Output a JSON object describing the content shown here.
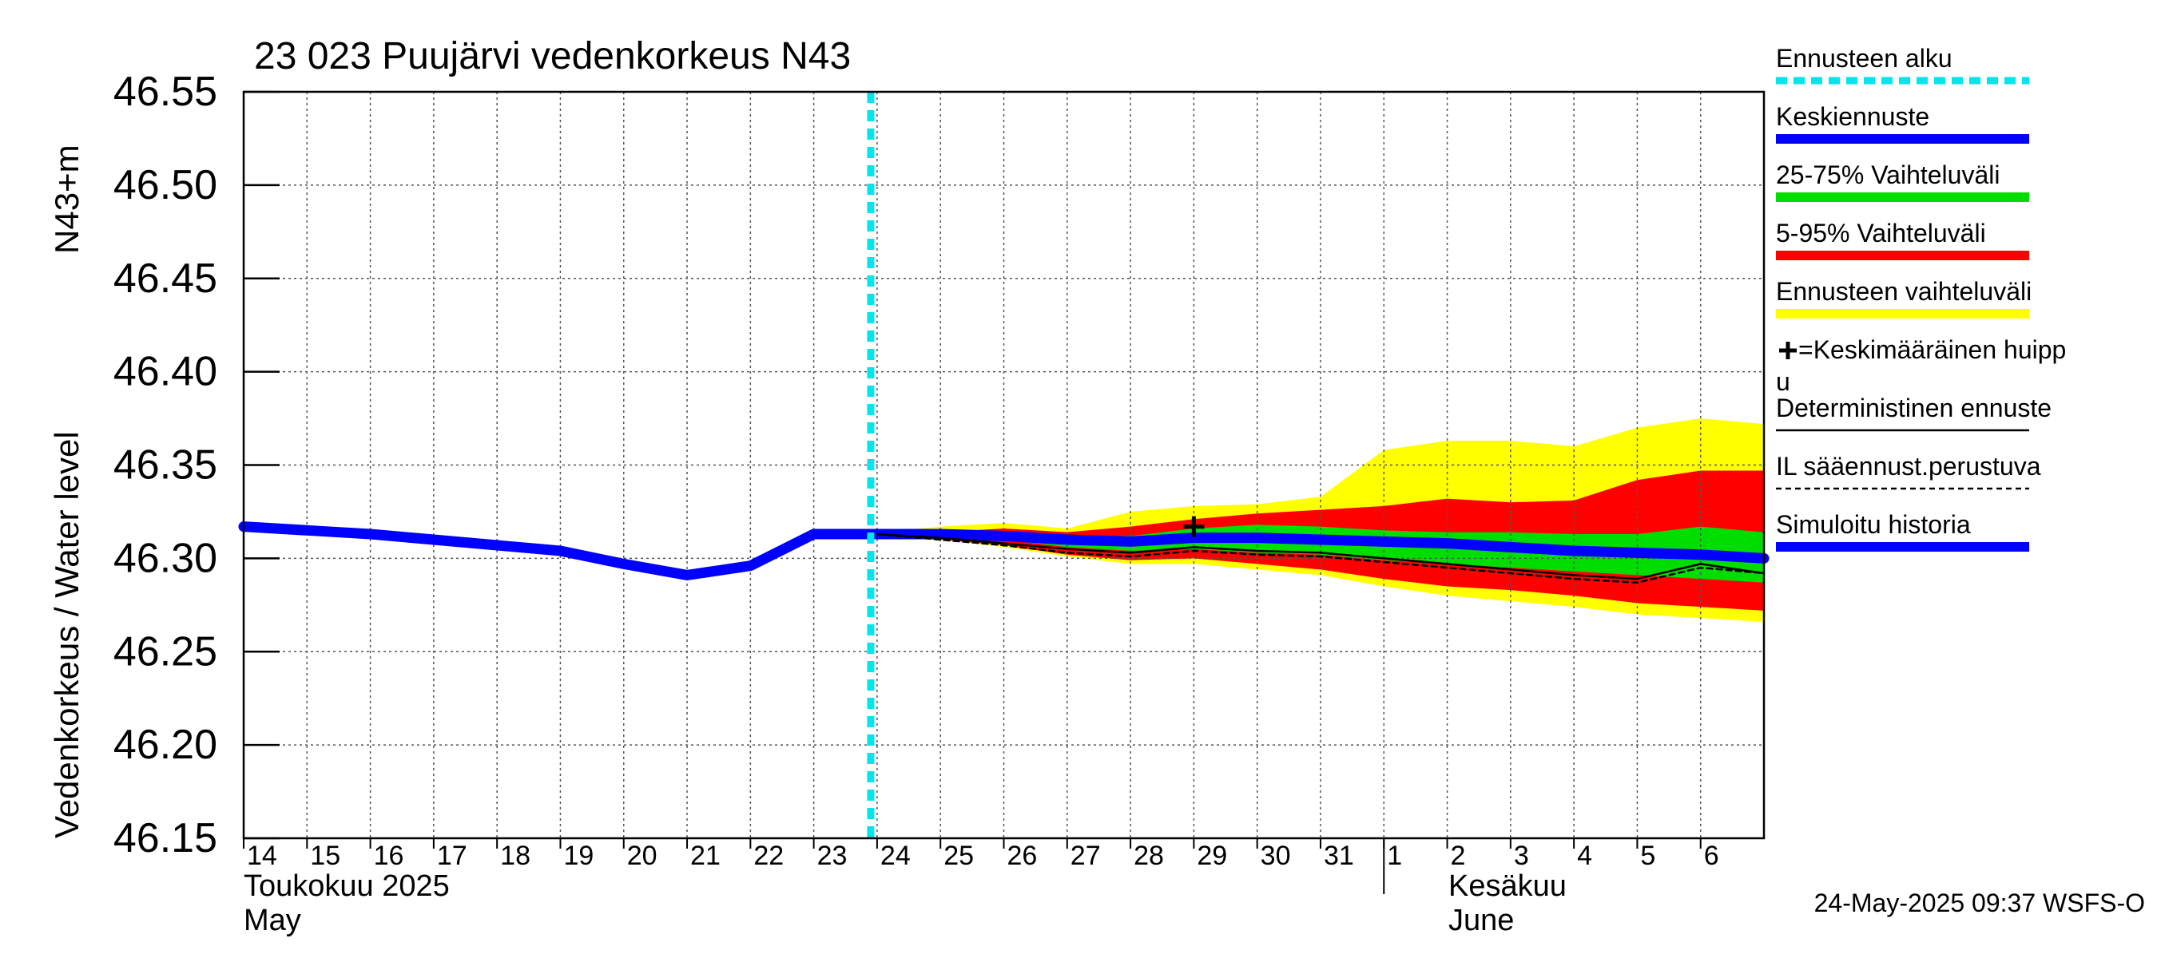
{
  "chart_data": {
    "type": "area",
    "title": "23 023 Puujärvi vedenkorkeus N43",
    "ylabel_left": "Vedenkorkeus / Water level",
    "ylabel_right": "N43+m",
    "ylim": [
      46.15,
      46.55
    ],
    "yticks": [
      "46.15",
      "46.20",
      "46.25",
      "46.30",
      "46.35",
      "46.40",
      "46.45",
      "46.50",
      "46.55"
    ],
    "xlim": [
      14,
      38
    ],
    "day_ticks": [
      {
        "x": 14,
        "label": "14"
      },
      {
        "x": 15,
        "label": "15"
      },
      {
        "x": 16,
        "label": "16"
      },
      {
        "x": 17,
        "label": "17"
      },
      {
        "x": 18,
        "label": "18"
      },
      {
        "x": 19,
        "label": "19"
      },
      {
        "x": 20,
        "label": "20"
      },
      {
        "x": 21,
        "label": "21"
      },
      {
        "x": 22,
        "label": "22"
      },
      {
        "x": 23,
        "label": "23"
      },
      {
        "x": 24,
        "label": "24"
      },
      {
        "x": 25,
        "label": "25"
      },
      {
        "x": 26,
        "label": "26"
      },
      {
        "x": 27,
        "label": "27"
      },
      {
        "x": 28,
        "label": "28"
      },
      {
        "x": 29,
        "label": "29"
      },
      {
        "x": 30,
        "label": "30"
      },
      {
        "x": 31,
        "label": "31"
      },
      {
        "x": 32,
        "label": "1"
      },
      {
        "x": 33,
        "label": "2"
      },
      {
        "x": 34,
        "label": "3"
      },
      {
        "x": 35,
        "label": "4"
      },
      {
        "x": 36,
        "label": "5"
      },
      {
        "x": 37,
        "label": "6"
      }
    ],
    "month_labels": {
      "may_fi": "Toukokuu  2025",
      "may_en": "May",
      "june_fi": "Kesäkuu",
      "june_en": "June"
    },
    "forecast_start_x": 24,
    "peak_marker": {
      "x": 29,
      "y": 46.317
    },
    "series": [
      {
        "name": "Simuloitu historia",
        "color": "#0000ff",
        "x": [
          14,
          15,
          16,
          17,
          18,
          19,
          20,
          21,
          22,
          23,
          24
        ],
        "y": [
          46.317,
          46.315,
          46.313,
          46.31,
          46.307,
          46.304,
          46.297,
          46.291,
          46.296,
          46.313,
          46.313
        ]
      },
      {
        "name": "Keskiennuste",
        "color": "#0000ff",
        "x": [
          24,
          25,
          26,
          27,
          28,
          29,
          30,
          31,
          32,
          33,
          34,
          35,
          36,
          37,
          38
        ],
        "y": [
          46.313,
          46.313,
          46.312,
          46.31,
          46.309,
          46.311,
          46.311,
          46.31,
          46.309,
          46.308,
          46.306,
          46.304,
          46.303,
          46.302,
          46.3
        ]
      },
      {
        "name": "Deterministinen ennuste",
        "color": "#000000",
        "x": [
          24,
          25,
          26,
          27,
          28,
          29,
          30,
          31,
          32,
          33,
          34,
          35,
          36,
          37,
          38
        ],
        "y": [
          46.313,
          46.311,
          46.308,
          46.305,
          46.303,
          46.306,
          46.304,
          46.303,
          46.3,
          46.297,
          46.294,
          46.291,
          46.289,
          46.297,
          46.292
        ]
      },
      {
        "name": "IL sääennust.perustuva",
        "color": "#000000",
        "x": [
          24,
          25,
          26,
          27,
          28,
          29,
          30,
          31,
          32,
          33,
          34,
          35,
          36,
          37,
          38
        ],
        "y": [
          46.313,
          46.31,
          46.307,
          46.303,
          46.301,
          46.304,
          46.302,
          46.301,
          46.298,
          46.295,
          46.292,
          46.289,
          46.287,
          46.295,
          46.292
        ]
      }
    ],
    "bands": [
      {
        "name": "Ennusteen vaihteluväli",
        "color": "#ffff00",
        "x": [
          24,
          25,
          26,
          27,
          28,
          29,
          30,
          31,
          32,
          33,
          34,
          35,
          36,
          37,
          38
        ],
        "lower": [
          46.312,
          46.31,
          46.306,
          46.301,
          46.297,
          46.297,
          46.294,
          46.291,
          46.285,
          46.28,
          46.277,
          46.274,
          46.27,
          46.268,
          46.266
        ],
        "upper": [
          46.314,
          46.317,
          46.319,
          46.316,
          46.325,
          46.328,
          46.329,
          46.333,
          46.358,
          46.363,
          46.363,
          46.36,
          46.37,
          46.375,
          46.372
        ]
      },
      {
        "name": "5-95% Vaihteluväli",
        "color": "#ff0000",
        "x": [
          24,
          25,
          26,
          27,
          28,
          29,
          30,
          31,
          32,
          33,
          34,
          35,
          36,
          37,
          38
        ],
        "lower": [
          46.312,
          46.31,
          46.307,
          46.302,
          46.299,
          46.3,
          46.297,
          46.294,
          46.289,
          46.285,
          46.283,
          46.28,
          46.276,
          46.274,
          46.272
        ],
        "upper": [
          46.313,
          46.314,
          46.316,
          46.314,
          46.317,
          46.321,
          46.324,
          46.326,
          46.328,
          46.332,
          46.33,
          46.331,
          46.342,
          46.347,
          46.347
        ]
      },
      {
        "name": "25-75% Vaihteluväli",
        "color": "#00dd00",
        "x": [
          24,
          25,
          26,
          27,
          28,
          29,
          30,
          31,
          32,
          33,
          34,
          35,
          36,
          37,
          38
        ],
        "lower": [
          46.312,
          46.311,
          46.31,
          46.306,
          46.304,
          46.305,
          46.303,
          46.302,
          46.299,
          46.297,
          46.295,
          46.293,
          46.291,
          46.289,
          46.287
        ],
        "upper": [
          46.313,
          46.313,
          46.313,
          46.312,
          46.312,
          46.316,
          46.318,
          46.317,
          46.315,
          46.314,
          46.314,
          46.313,
          46.313,
          46.317,
          46.314
        ]
      }
    ],
    "legend": [
      {
        "label": "Ennusteen alku",
        "color": "#00e5ee",
        "style": "dotted-thick"
      },
      {
        "label": "Keskiennuste",
        "color": "#0000ff",
        "style": "solid-thick"
      },
      {
        "label": "25-75% Vaihteluväli",
        "color": "#00dd00",
        "style": "solid-thick"
      },
      {
        "label": "5-95% Vaihteluväli",
        "color": "#ff0000",
        "style": "solid-thick"
      },
      {
        "label": "Ennusteen vaihteluväli",
        "color": "#ffff00",
        "style": "solid-thick"
      },
      {
        "label": "=Keskimääräinen huipp",
        "label2": "u",
        "color": "#000000",
        "style": "cross"
      },
      {
        "label": "Deterministinen ennuste",
        "color": "#000000",
        "style": "solid-thin"
      },
      {
        "label": "IL sääennust.perustuva",
        "color": "#000000",
        "style": "dashed-thin"
      },
      {
        "label": "Simuloitu historia",
        "color": "#0000ff",
        "style": "solid-thick"
      }
    ],
    "timestamp": "24-May-2025 09:37 WSFS-O"
  }
}
